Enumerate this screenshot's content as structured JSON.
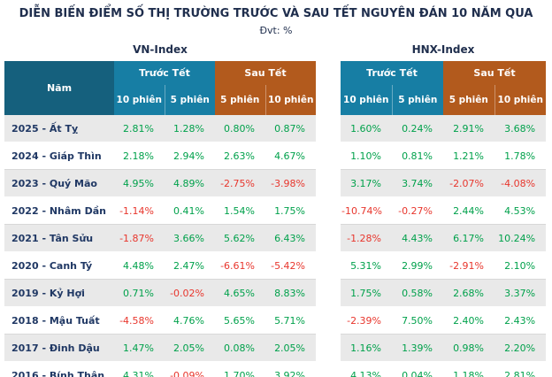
{
  "page": {
    "unit_label": "Đvt: %"
  },
  "chart_data": {
    "type": "table",
    "title": "DIỄN BIẾN ĐIỂM SỐ THỊ TRƯỜNG TRƯỚC VÀ SAU TẾT NGUYÊN ĐÁN 10 NĂM QUA",
    "unit": "%",
    "groups": [
      "VN-Index",
      "HNX-Index"
    ],
    "year_column": "Năm",
    "before_label": "Trước Tết",
    "after_label": "Sau Tết",
    "sub_columns": [
      "10 phiên",
      "5 phiên",
      "5 phiên",
      "10 phiên"
    ],
    "rows": [
      {
        "year": "2025 - Ất Tỵ",
        "vn": [
          "2.81%",
          "1.28%",
          "0.80%",
          "0.87%"
        ],
        "hnx": [
          "1.60%",
          "0.24%",
          "2.91%",
          "3.68%"
        ]
      },
      {
        "year": "2024 - Giáp Thìn",
        "vn": [
          "2.18%",
          "2.94%",
          "2.63%",
          "4.67%"
        ],
        "hnx": [
          "1.10%",
          "0.81%",
          "1.21%",
          "1.78%"
        ]
      },
      {
        "year": "2023 - Quý Mão",
        "vn": [
          "4.95%",
          "4.89%",
          "-2.75%",
          "-3.98%"
        ],
        "hnx": [
          "3.17%",
          "3.74%",
          "-2.07%",
          "-4.08%"
        ]
      },
      {
        "year": "2022 - Nhâm Dần",
        "vn": [
          "-1.14%",
          "0.41%",
          "1.54%",
          "1.75%"
        ],
        "hnx": [
          "-10.74%",
          "-0.27%",
          "2.44%",
          "4.53%"
        ]
      },
      {
        "year": "2021 - Tân Sửu",
        "vn": [
          "-1.87%",
          "3.66%",
          "5.62%",
          "6.43%"
        ],
        "hnx": [
          "-1.28%",
          "4.43%",
          "6.17%",
          "10.24%"
        ]
      },
      {
        "year": "2020 - Canh Tý",
        "vn": [
          "4.48%",
          "2.47%",
          "-6.61%",
          "-5.42%"
        ],
        "hnx": [
          "5.31%",
          "2.99%",
          "-2.91%",
          "2.10%"
        ]
      },
      {
        "year": "2019 - Kỷ Hợi",
        "vn": [
          "0.71%",
          "-0.02%",
          "4.65%",
          "8.83%"
        ],
        "hnx": [
          "1.75%",
          "0.58%",
          "2.68%",
          "3.37%"
        ]
      },
      {
        "year": "2018 - Mậu Tuất",
        "vn": [
          "-4.58%",
          "4.76%",
          "5.65%",
          "5.71%"
        ],
        "hnx": [
          "-2.39%",
          "7.50%",
          "2.40%",
          "2.43%"
        ]
      },
      {
        "year": "2017 - Đinh Dậu",
        "vn": [
          "1.47%",
          "2.05%",
          "0.08%",
          "2.05%"
        ],
        "hnx": [
          "1.16%",
          "1.39%",
          "0.98%",
          "2.20%"
        ]
      },
      {
        "year": "2016 - Bính Thân",
        "vn": [
          "4.31%",
          "-0.09%",
          "1.70%",
          "3.92%"
        ],
        "hnx": [
          "4.13%",
          "0.04%",
          "1.18%",
          "2.81%"
        ]
      }
    ]
  },
  "colors": {
    "positive": "#00a14b",
    "negative": "#e8362d",
    "header-teal": "#177ea4",
    "header-orange": "#b25a1d",
    "year-header-bg": "#15607d",
    "year-text": "#203864",
    "title-text": "#1f2e4d",
    "alt-row": "#e9e9e9"
  }
}
